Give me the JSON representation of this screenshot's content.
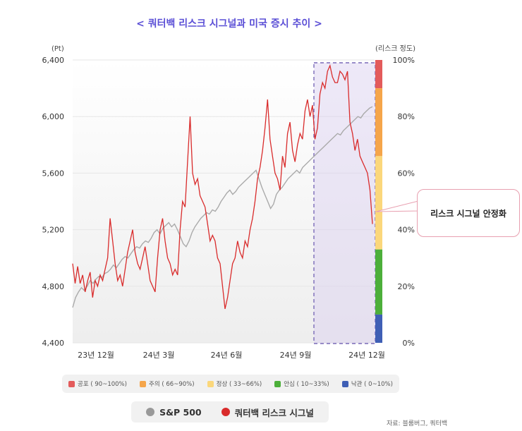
{
  "chart_data": {
    "type": "line",
    "title": "< 쿼터백 리스크 시그널과 미국 증시 추이 >",
    "left_axis": {
      "unit": "(Pt)",
      "ticks": [
        "6,400",
        "6,000",
        "5,600",
        "5,200",
        "4,800",
        "4,400"
      ],
      "range": [
        4400,
        6400
      ]
    },
    "right_axis": {
      "unit": "(리스크 정도)",
      "ticks": [
        "100%",
        "80%",
        "60%",
        "40%",
        "20%",
        "0%"
      ],
      "range": [
        0,
        100
      ]
    },
    "x_ticks": [
      "23년 12월",
      "24년 3월",
      "24년 6월",
      "24년 9월",
      "24년 12월"
    ],
    "risk_bands": [
      {
        "label": "공포 ( 90~100%)",
        "from": 90,
        "to": 100,
        "color": "#e35b5b"
      },
      {
        "label": "주의 ( 66~90%)",
        "from": 66,
        "to": 90,
        "color": "#f5a54a"
      },
      {
        "label": "정상 ( 33~66%)",
        "from": 33,
        "to": 66,
        "color": "#fbd77b"
      },
      {
        "label": "안심 ( 10~33%)",
        "from": 10,
        "to": 33,
        "color": "#4caf3a"
      },
      {
        "label": "낙관 ( 0~10%)",
        "from": 0,
        "to": 10,
        "color": "#3f5fb5"
      }
    ],
    "series": [
      {
        "name": "S&P 500",
        "axis": "left",
        "color": "#aaaaaa",
        "values": [
          4650,
          4720,
          4760,
          4790,
          4770,
          4800,
          4840,
          4820,
          4850,
          4870,
          4860,
          4890,
          4900,
          4920,
          4950,
          4930,
          4960,
          4990,
          5010,
          5000,
          5030,
          5060,
          5080,
          5070,
          5100,
          5120,
          5110,
          5140,
          5180,
          5200,
          5170,
          5210,
          5230,
          5250,
          5220,
          5240,
          5200,
          5150,
          5100,
          5080,
          5120,
          5180,
          5220,
          5250,
          5280,
          5300,
          5320,
          5310,
          5340,
          5330,
          5360,
          5400,
          5430,
          5460,
          5480,
          5450,
          5470,
          5500,
          5520,
          5540,
          5560,
          5580,
          5600,
          5620,
          5560,
          5500,
          5450,
          5400,
          5350,
          5380,
          5450,
          5480,
          5500,
          5530,
          5560,
          5580,
          5600,
          5620,
          5600,
          5640,
          5660,
          5680,
          5700,
          5720,
          5740,
          5760,
          5780,
          5800,
          5820,
          5840,
          5860,
          5880,
          5870,
          5900,
          5920,
          5940,
          5960,
          5980,
          6000,
          5990,
          6020,
          6040,
          6060,
          6070
        ]
      },
      {
        "name": "쿼터백 리스크 시그널",
        "axis": "right",
        "color": "#d92b2b",
        "values": [
          28,
          21,
          27,
          21,
          24,
          18,
          22,
          25,
          16,
          22,
          20,
          24,
          22,
          26,
          30,
          44,
          36,
          28,
          22,
          24,
          20,
          26,
          32,
          36,
          40,
          32,
          28,
          26,
          30,
          34,
          28,
          22,
          20,
          18,
          30,
          40,
          44,
          36,
          30,
          28,
          24,
          26,
          24,
          40,
          50,
          48,
          64,
          80,
          60,
          56,
          58,
          52,
          50,
          48,
          42,
          36,
          38,
          36,
          30,
          28,
          20,
          12,
          16,
          22,
          28,
          30,
          36,
          32,
          30,
          36,
          34,
          40,
          44,
          50,
          58,
          62,
          68,
          76,
          86,
          72,
          66,
          60,
          58,
          54,
          66,
          62,
          74,
          78,
          68,
          64,
          70,
          74,
          72,
          82,
          86,
          80,
          84,
          72,
          76,
          88,
          92,
          90,
          96,
          98,
          94,
          92,
          92,
          96,
          95,
          93,
          96,
          78,
          74,
          68,
          72,
          66,
          64,
          62,
          60,
          54,
          42
        ]
      }
    ],
    "annotation": "리스크 시그널 안정화"
  },
  "source": "자료: 블룸버그, 쿼터백"
}
